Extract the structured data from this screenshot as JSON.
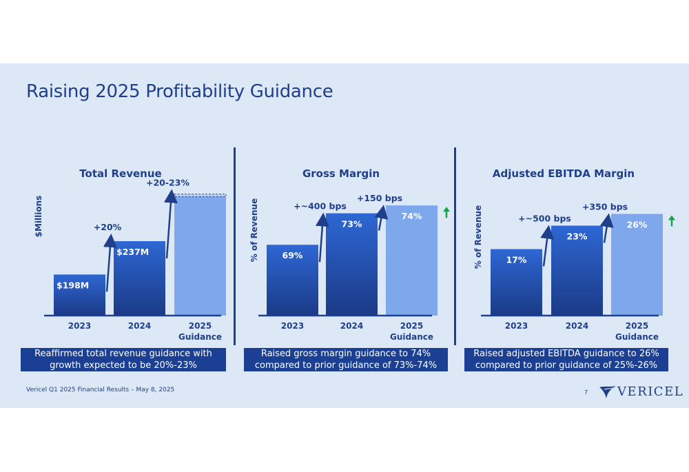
{
  "title": "Raising 2025 Profitability Guidance",
  "colors": {
    "dark_bar_top": "#2e67d4",
    "dark_bar_bottom": "#1b3a86",
    "guidance_bar": "#7fa7ec",
    "navy": "#1f3f8a",
    "up_arrow": "#17a34a"
  },
  "charts": [
    {
      "title": "Total Revenue",
      "ylabel": "$Millions",
      "caption_line1": "Reaffirmed total revenue guidance with",
      "caption_line2": "growth expected to be 20%-23%"
    },
    {
      "title": "Gross Margin",
      "ylabel": "% of Revenue",
      "caption_line1": "Raised gross margin guidance to 74%",
      "caption_line2": "compared to prior guidance of 73%-74%"
    },
    {
      "title": "Adjusted EBITDA Margin",
      "ylabel": "% of Revenue",
      "caption_line1": "Raised adjusted EBITDA guidance to 26%",
      "caption_line2": "compared to prior guidance of 25%-26%"
    }
  ],
  "chart_data": [
    {
      "type": "bar",
      "title": "Total Revenue",
      "ylabel": "$Millions",
      "categories": [
        "2023",
        "2024",
        "2025\nGuidance"
      ],
      "values": [
        198,
        237,
        289
      ],
      "labels": [
        "$198M",
        "$237M",
        ""
      ],
      "range_high": 292,
      "guidance_index": 2,
      "growth": [
        "+20%",
        "+20-23%"
      ],
      "up_arrow": false
    },
    {
      "type": "bar",
      "title": "Gross Margin",
      "ylabel": "% of Revenue",
      "categories": [
        "2023",
        "2024",
        "2025\nGuidance"
      ],
      "values": [
        69,
        73,
        74
      ],
      "labels": [
        "69%",
        "73%",
        "74%"
      ],
      "guidance_index": 2,
      "growth": [
        "+~400 bps",
        "+150 bps"
      ],
      "up_arrow": true
    },
    {
      "type": "bar",
      "title": "Adjusted EBITDA Margin",
      "ylabel": "% of Revenue",
      "categories": [
        "2023",
        "2024",
        "2025\nGuidance"
      ],
      "values": [
        17,
        23,
        26
      ],
      "labels": [
        "17%",
        "23%",
        "26%"
      ],
      "guidance_index": 2,
      "growth": [
        "+~500 bps",
        "+350 bps"
      ],
      "up_arrow": true
    }
  ],
  "footer": "Vericel Q1 2025 Financial Results – May 8, 2025",
  "page_number": "7",
  "logo_text": "VERICEL"
}
